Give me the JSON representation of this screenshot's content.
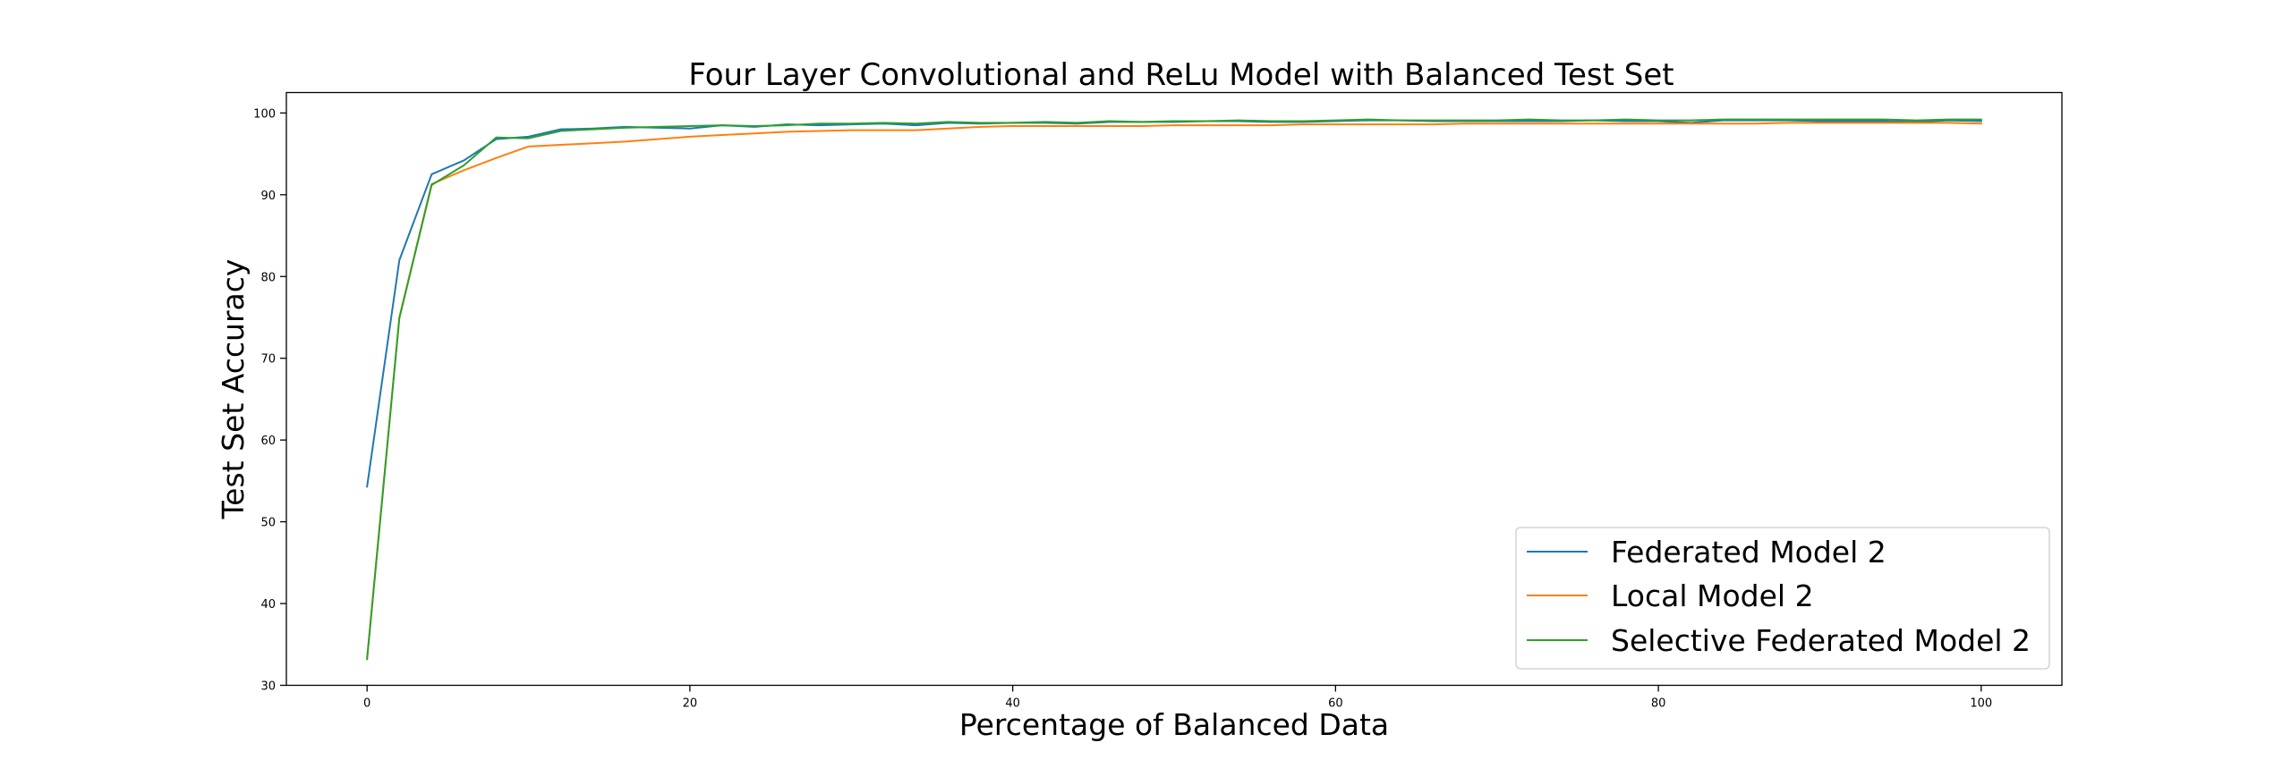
{
  "chart_data": {
    "type": "line",
    "title": "Four Layer Convolutional and ReLu Model with Balanced Test Set",
    "xlabel": "Percentage of Balanced Data",
    "ylabel": "Test Set Accuracy",
    "xlim": [
      -5,
      105
    ],
    "ylim": [
      30,
      102.5
    ],
    "xticks": [
      0,
      20,
      40,
      60,
      80,
      100
    ],
    "yticks": [
      30,
      40,
      50,
      60,
      70,
      80,
      90,
      100
    ],
    "grid": false,
    "legend_position": "lower-right",
    "x": [
      0,
      2,
      4,
      6,
      8,
      10,
      12,
      14,
      16,
      18,
      20,
      22,
      24,
      26,
      28,
      30,
      32,
      34,
      36,
      38,
      40,
      42,
      44,
      46,
      48,
      50,
      52,
      54,
      56,
      58,
      60,
      62,
      64,
      66,
      68,
      70,
      72,
      74,
      76,
      78,
      80,
      82,
      84,
      86,
      88,
      90,
      92,
      94,
      96,
      98,
      100
    ],
    "series": [
      {
        "name": "Federated Model 2",
        "color": "#1f77b4",
        "values": [
          54.3,
          82.0,
          92.5,
          94.2,
          96.8,
          97.1,
          98.0,
          98.1,
          98.3,
          98.2,
          98.1,
          98.5,
          98.3,
          98.6,
          98.5,
          98.6,
          98.7,
          98.5,
          98.8,
          98.7,
          98.8,
          98.8,
          98.7,
          98.9,
          98.9,
          98.9,
          99.0,
          99.0,
          98.9,
          98.9,
          99.0,
          99.1,
          99.1,
          99.0,
          99.0,
          99.0,
          99.0,
          99.0,
          99.1,
          99.0,
          99.0,
          98.8,
          99.1,
          99.1,
          99.1,
          99.0,
          99.0,
          99.0,
          98.9,
          99.1,
          99.0
        ]
      },
      {
        "name": "Local Model 2",
        "color": "#ff7f0e",
        "values": [
          33.3,
          75.0,
          91.3,
          93.0,
          94.5,
          95.9,
          96.1,
          96.3,
          96.5,
          96.8,
          97.1,
          97.3,
          97.5,
          97.7,
          97.8,
          97.9,
          97.9,
          97.9,
          98.1,
          98.3,
          98.4,
          98.4,
          98.4,
          98.4,
          98.4,
          98.5,
          98.5,
          98.5,
          98.5,
          98.6,
          98.6,
          98.6,
          98.6,
          98.6,
          98.7,
          98.7,
          98.7,
          98.7,
          98.7,
          98.7,
          98.7,
          98.7,
          98.7,
          98.7,
          98.8,
          98.8,
          98.8,
          98.8,
          98.8,
          98.8,
          98.7
        ]
      },
      {
        "name": "Selective Federated Model 2",
        "color": "#2ca02c",
        "values": [
          33.2,
          74.9,
          91.2,
          93.6,
          97.0,
          96.9,
          97.8,
          98.0,
          98.2,
          98.3,
          98.4,
          98.5,
          98.4,
          98.5,
          98.7,
          98.7,
          98.8,
          98.7,
          98.9,
          98.8,
          98.8,
          98.9,
          98.8,
          99.0,
          98.9,
          99.0,
          99.0,
          99.1,
          99.0,
          99.0,
          99.1,
          99.2,
          99.1,
          99.1,
          99.1,
          99.1,
          99.2,
          99.1,
          99.1,
          99.2,
          99.1,
          99.1,
          99.2,
          99.2,
          99.2,
          99.2,
          99.2,
          99.2,
          99.1,
          99.2,
          99.2
        ]
      }
    ]
  }
}
